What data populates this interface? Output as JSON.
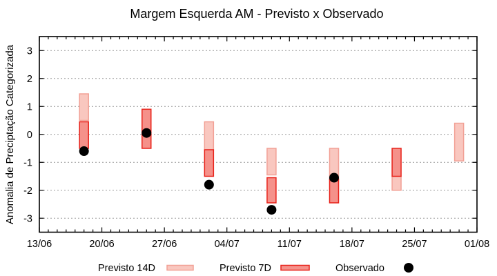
{
  "chart_data": {
    "type": "bar",
    "variant": "forecast-range-bars-with-observed-dots",
    "title": "Margem Esquerda AM - Previsto x Observado",
    "ylabel": "Anomalia de Preciptação Categorizada",
    "xlabel": "",
    "ylim": [
      -3.5,
      3.5
    ],
    "y_ticks": [
      3,
      2,
      1,
      0,
      -1,
      -2,
      -3
    ],
    "grid": "horizontal-dotted",
    "legend_position": "bottom",
    "x_axis": {
      "major_tick_labels": [
        "13/06",
        "20/06",
        "27/06",
        "04/07",
        "11/07",
        "18/07",
        "25/07",
        "01/08"
      ],
      "major_tick_days": [
        0,
        7,
        14,
        21,
        28,
        35,
        42,
        49
      ],
      "minor_tick_interval_days": 1,
      "total_days": 49
    },
    "groups": [
      {
        "date": "18/06",
        "day_offset": 5,
        "previsto_14d": [
          0.5,
          1.45
        ],
        "previsto_7d": [
          -0.5,
          0.45
        ],
        "observado": -0.6
      },
      {
        "date": "25/06",
        "day_offset": 12,
        "previsto_14d": null,
        "previsto_7d": [
          -0.5,
          0.9
        ],
        "observado": 0.05
      },
      {
        "date": "02/07",
        "day_offset": 19,
        "previsto_14d": [
          -0.55,
          0.45
        ],
        "previsto_7d": [
          -1.5,
          -0.55
        ],
        "observado": -1.8
      },
      {
        "date": "09/07",
        "day_offset": 26,
        "previsto_14d": [
          -1.45,
          -0.5
        ],
        "previsto_7d": [
          -2.45,
          -1.55
        ],
        "observado": -2.7
      },
      {
        "date": "16/07",
        "day_offset": 33,
        "previsto_14d": [
          -1.6,
          -0.5
        ],
        "previsto_7d": [
          -2.45,
          -1.6
        ],
        "observado": -1.55
      },
      {
        "date": "23/07",
        "day_offset": 40,
        "previsto_14d": [
          -2.0,
          -1.5
        ],
        "previsto_7d": [
          -1.5,
          -0.5
        ],
        "observado": null
      },
      {
        "date": "30/07",
        "day_offset": 47,
        "previsto_14d": [
          -0.95,
          0.4
        ],
        "previsto_7d": null,
        "observado": null
      }
    ],
    "legend": [
      {
        "label": "Previsto 14D",
        "swatch": "box",
        "fill": "#f9c7bf",
        "stroke": "#f2a095"
      },
      {
        "label": "Previsto 7D",
        "swatch": "box",
        "fill": "#f5918a",
        "stroke": "#e8221a"
      },
      {
        "label": "Observado",
        "swatch": "dot",
        "fill": "#000000"
      }
    ],
    "colors": {
      "previsto_14d_fill": "#f9c7bf",
      "previsto_14d_stroke": "#f2a095",
      "previsto_7d_fill": "#f5918a",
      "previsto_7d_stroke": "#e8221a",
      "observado": "#000000",
      "grid": "#999999",
      "axis": "#000000",
      "background": "#ffffff"
    }
  }
}
